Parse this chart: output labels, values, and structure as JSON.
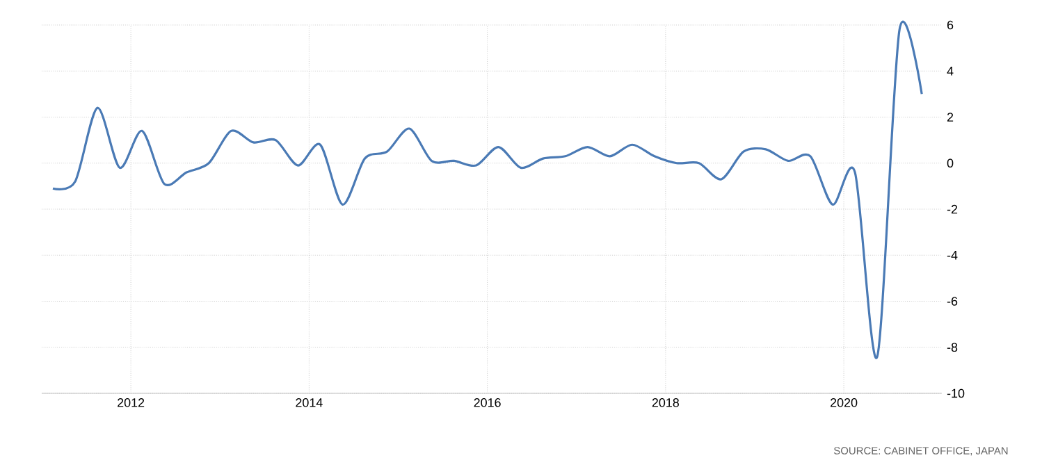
{
  "chart_data": {
    "type": "line",
    "x": [
      2011.125,
      2011.375,
      2011.625,
      2011.875,
      2012.125,
      2012.375,
      2012.625,
      2012.875,
      2013.125,
      2013.375,
      2013.625,
      2013.875,
      2014.125,
      2014.375,
      2014.625,
      2014.875,
      2015.125,
      2015.375,
      2015.625,
      2015.875,
      2016.125,
      2016.375,
      2016.625,
      2016.875,
      2017.125,
      2017.375,
      2017.625,
      2017.875,
      2018.125,
      2018.375,
      2018.625,
      2018.875,
      2019.125,
      2019.375,
      2019.625,
      2019.875,
      2020.125,
      2020.375,
      2020.625,
      2020.875
    ],
    "series": [
      {
        "color": "#4a7ab5",
        "values": [
          -1.1,
          -0.8,
          2.4,
          -0.2,
          1.4,
          -0.9,
          -0.4,
          0.0,
          1.4,
          0.9,
          1.0,
          -0.1,
          0.8,
          -1.8,
          0.2,
          0.5,
          1.5,
          0.1,
          0.1,
          -0.1,
          0.7,
          -0.2,
          0.2,
          0.3,
          0.7,
          0.3,
          0.8,
          0.3,
          0.0,
          0.0,
          -0.7,
          0.5,
          0.6,
          0.1,
          0.3,
          -1.8,
          -0.4,
          -8.4,
          5.8,
          3.0
        ]
      }
    ],
    "xlim": [
      2011,
      2021.1
    ],
    "ylim": [
      -10,
      6
    ],
    "xticks": [
      2012,
      2014,
      2016,
      2018,
      2020
    ],
    "yticks": [
      -10,
      -8,
      -6,
      -4,
      -2,
      0,
      2,
      4,
      6
    ],
    "grid": true,
    "marker": "none",
    "line_style": "solid",
    "annotations": [
      "SOURCE: CABINET OFFICE, JAPAN"
    ]
  }
}
